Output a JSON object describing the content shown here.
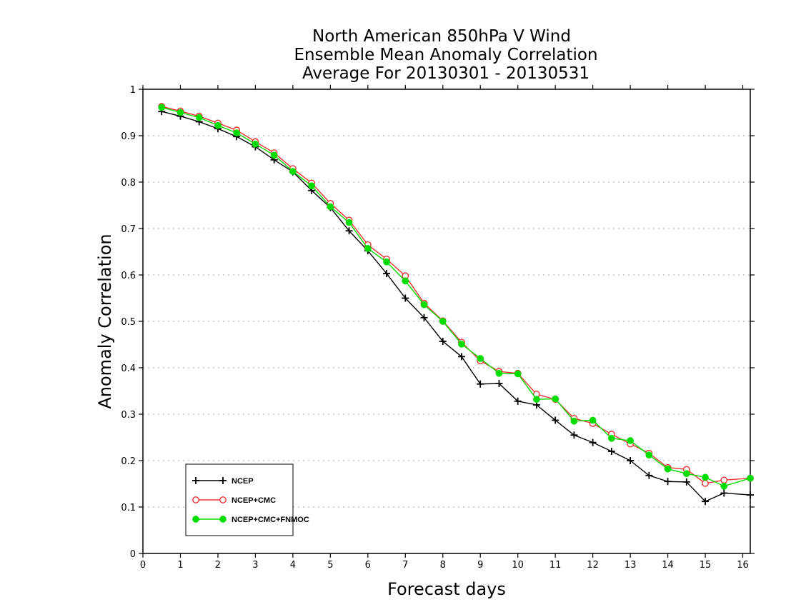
{
  "chart_data": {
    "type": "line",
    "title": [
      "North American 850hPa V Wind",
      "Ensemble Mean Anomaly Correlation",
      "Average For 20130301 - 20130531"
    ],
    "xlabel": "Forecast days",
    "ylabel": "Anomaly Correlation",
    "xlim": [
      0,
      16.2
    ],
    "ylim": [
      0,
      1
    ],
    "x_ticks": [
      "0",
      "1",
      "2",
      "3",
      "4",
      "5",
      "6",
      "7",
      "8",
      "9",
      "10",
      "11",
      "12",
      "13",
      "14",
      "15",
      "16"
    ],
    "y_ticks": [
      "0",
      "0.1",
      "0.2",
      "0.3",
      "0.4",
      "0.5",
      "0.6",
      "0.7",
      "0.8",
      "0.9",
      "1"
    ],
    "grid": "horizontal dotted",
    "legend_position": "bottom-left",
    "x": [
      0.5,
      1,
      1.5,
      2,
      2.5,
      3,
      3.5,
      4,
      4.5,
      5,
      5.5,
      6,
      6.5,
      7,
      7.5,
      8,
      8.5,
      9,
      9.5,
      10,
      10.5,
      11,
      11.5,
      12,
      12.5,
      13,
      13.5,
      14,
      14.5,
      15,
      15.5,
      16.2
    ],
    "series": [
      {
        "name": "NCEP",
        "color": "#000000",
        "marker": "plus",
        "values": [
          0.952,
          0.942,
          0.93,
          0.915,
          0.898,
          0.876,
          0.848,
          0.822,
          0.782,
          0.745,
          0.695,
          0.652,
          0.603,
          0.55,
          0.508,
          0.457,
          0.424,
          0.365,
          0.366,
          0.328,
          0.32,
          0.287,
          0.255,
          0.239,
          0.22,
          0.2,
          0.168,
          0.155,
          0.154,
          0.112,
          0.13,
          0.126
        ]
      },
      {
        "name": "NCEP+CMC",
        "color": "#ee3333",
        "marker": "open-circle",
        "values": [
          0.963,
          0.953,
          0.942,
          0.927,
          0.912,
          0.887,
          0.863,
          0.829,
          0.798,
          0.754,
          0.718,
          0.665,
          0.634,
          0.598,
          0.539,
          0.501,
          0.455,
          0.415,
          0.392,
          0.388,
          0.343,
          0.332,
          0.291,
          0.28,
          0.257,
          0.236,
          0.216,
          0.185,
          0.181,
          0.151,
          0.158,
          0.162
        ]
      },
      {
        "name": "NCEP+CMC+FNMOC",
        "color": "#00dd00",
        "marker": "filled-circle",
        "values": [
          0.961,
          0.95,
          0.939,
          0.922,
          0.906,
          0.882,
          0.858,
          0.823,
          0.792,
          0.747,
          0.713,
          0.657,
          0.628,
          0.587,
          0.536,
          0.5,
          0.451,
          0.42,
          0.388,
          0.387,
          0.332,
          0.333,
          0.285,
          0.287,
          0.248,
          0.243,
          0.212,
          0.182,
          0.172,
          0.164,
          0.145,
          0.162
        ]
      }
    ]
  }
}
